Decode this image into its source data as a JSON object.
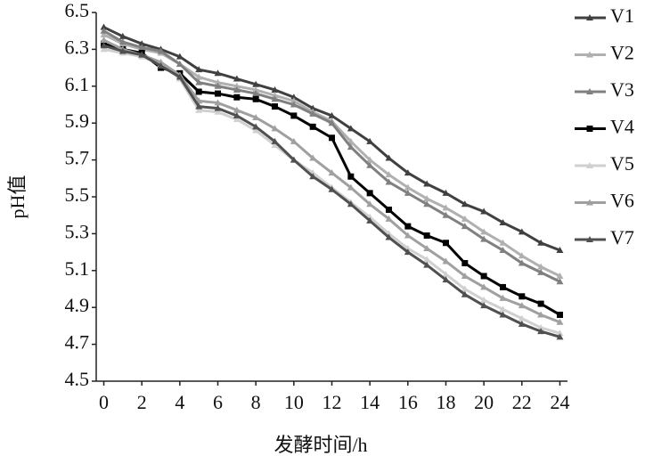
{
  "chart_data": {
    "type": "line",
    "x_label": "发酵时间/h",
    "y_label": "pH值",
    "x": [
      0,
      1,
      2,
      3,
      4,
      5,
      6,
      7,
      8,
      9,
      10,
      11,
      12,
      13,
      14,
      15,
      16,
      17,
      18,
      19,
      20,
      21,
      22,
      23,
      24
    ],
    "xlim": [
      -0.4,
      24.4
    ],
    "xticks": [
      0,
      2,
      4,
      6,
      8,
      10,
      12,
      14,
      16,
      18,
      20,
      22,
      24
    ],
    "ylim": [
      4.5,
      6.5
    ],
    "yticks": [
      4.5,
      4.7,
      4.9,
      5.1,
      5.3,
      5.5,
      5.7,
      5.9,
      6.1,
      6.3,
      6.5
    ],
    "legend": "right",
    "series": [
      {
        "name": "V1",
        "color": "#404040",
        "marker": "triangle",
        "values": [
          6.42,
          6.37,
          6.33,
          6.3,
          6.26,
          6.19,
          6.17,
          6.14,
          6.11,
          6.08,
          6.04,
          5.98,
          5.94,
          5.87,
          5.8,
          5.71,
          5.63,
          5.57,
          5.52,
          5.46,
          5.42,
          5.36,
          5.31,
          5.25,
          5.21
        ]
      },
      {
        "name": "V2",
        "color": "#b0b0b0",
        "marker": "triangle",
        "values": [
          6.38,
          6.33,
          6.3,
          6.28,
          6.22,
          6.15,
          6.12,
          6.1,
          6.08,
          6.05,
          6.02,
          5.96,
          5.91,
          5.8,
          5.7,
          5.62,
          5.55,
          5.49,
          5.44,
          5.38,
          5.31,
          5.25,
          5.18,
          5.12,
          5.07
        ]
      },
      {
        "name": "V3",
        "color": "#808080",
        "marker": "triangle",
        "values": [
          6.4,
          6.34,
          6.31,
          6.29,
          6.22,
          6.12,
          6.1,
          6.08,
          6.06,
          6.03,
          6.0,
          5.95,
          5.9,
          5.77,
          5.67,
          5.58,
          5.52,
          5.46,
          5.4,
          5.34,
          5.27,
          5.21,
          5.14,
          5.09,
          5.04
        ]
      },
      {
        "name": "V4",
        "color": "#000000",
        "marker": "square",
        "values": [
          6.33,
          6.3,
          6.28,
          6.2,
          6.17,
          6.07,
          6.06,
          6.04,
          6.03,
          5.99,
          5.94,
          5.88,
          5.82,
          5.61,
          5.52,
          5.43,
          5.34,
          5.29,
          5.25,
          5.14,
          5.07,
          5.01,
          4.96,
          4.92,
          4.86
        ]
      },
      {
        "name": "V5",
        "color": "#d0d0d0",
        "marker": "triangle",
        "values": [
          6.3,
          6.28,
          6.26,
          6.22,
          6.14,
          5.97,
          5.96,
          5.92,
          5.86,
          5.78,
          5.7,
          5.63,
          5.55,
          5.47,
          5.39,
          5.3,
          5.22,
          5.16,
          5.08,
          5.0,
          4.94,
          4.89,
          4.84,
          4.79,
          4.76
        ]
      },
      {
        "name": "V6",
        "color": "#a0a0a0",
        "marker": "triangle",
        "values": [
          6.35,
          6.3,
          6.27,
          6.23,
          6.16,
          6.02,
          6.01,
          5.97,
          5.93,
          5.87,
          5.8,
          5.71,
          5.63,
          5.55,
          5.46,
          5.38,
          5.29,
          5.22,
          5.15,
          5.07,
          5.01,
          4.95,
          4.91,
          4.86,
          4.82
        ]
      },
      {
        "name": "V7",
        "color": "#505050",
        "marker": "triangle",
        "values": [
          6.32,
          6.29,
          6.27,
          6.21,
          6.15,
          5.99,
          5.98,
          5.94,
          5.88,
          5.8,
          5.7,
          5.61,
          5.54,
          5.46,
          5.37,
          5.28,
          5.2,
          5.13,
          5.05,
          4.97,
          4.91,
          4.86,
          4.81,
          4.77,
          4.74
        ]
      }
    ]
  }
}
